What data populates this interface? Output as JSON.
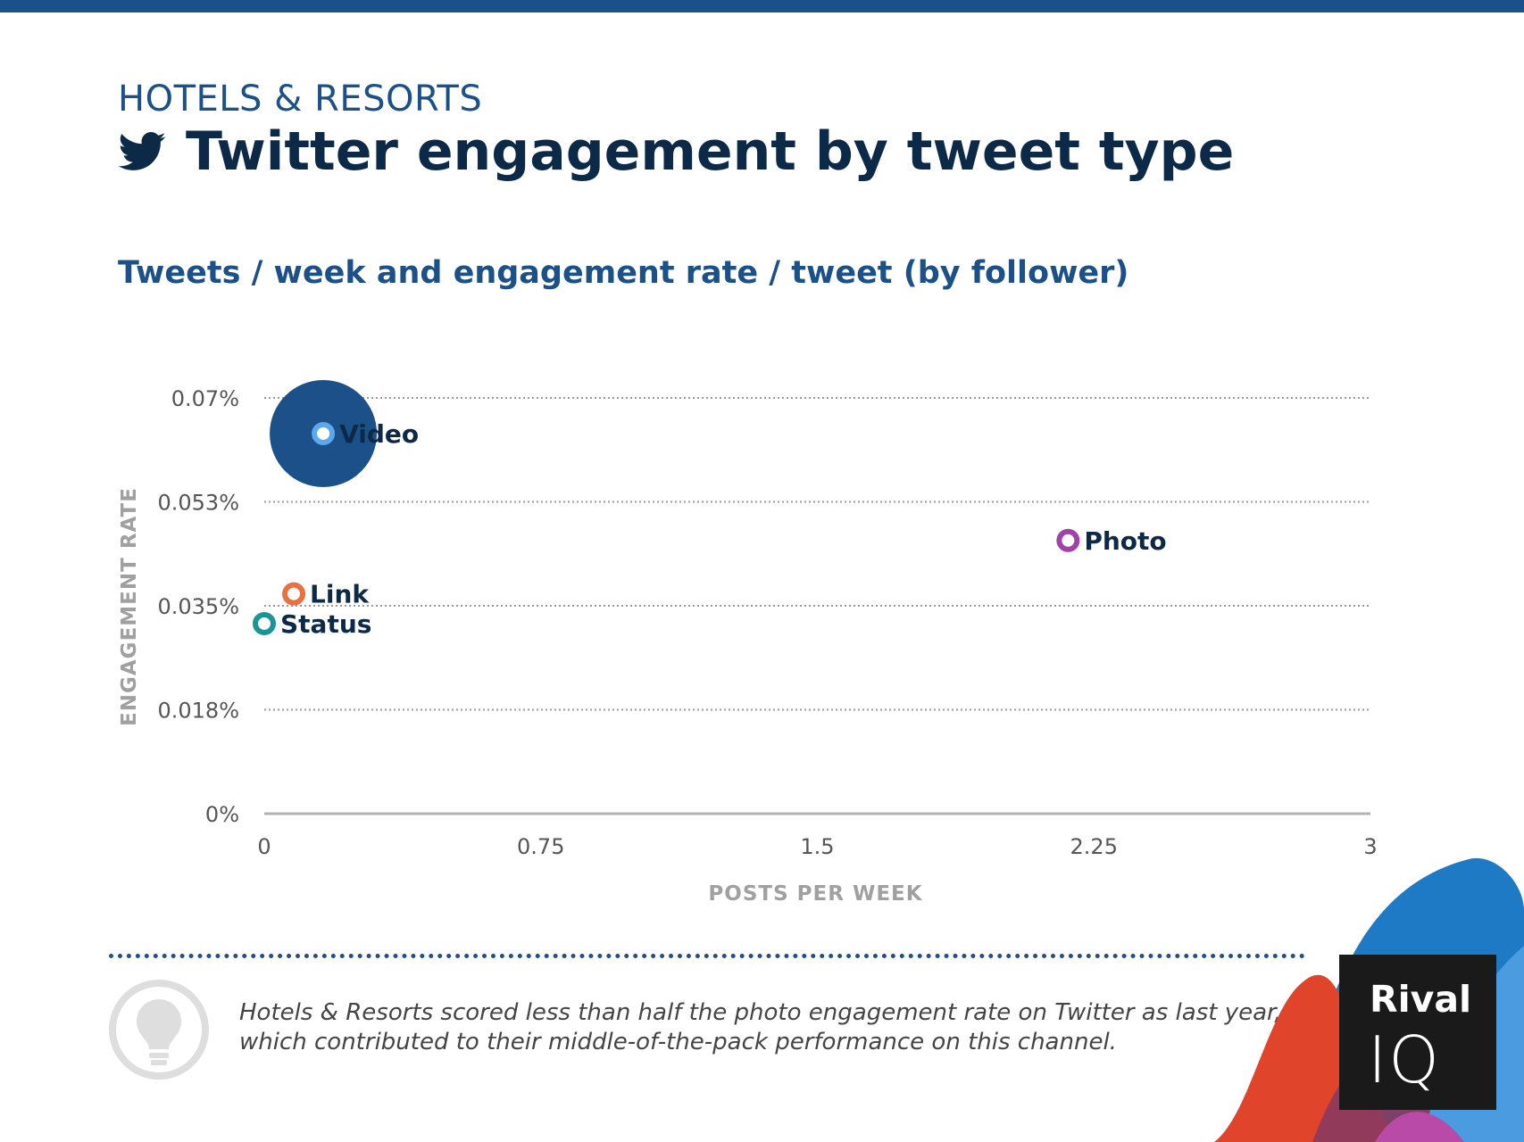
{
  "header": {
    "kicker": "HOTELS & RESORTS",
    "title": "Twitter engagement by tweet type",
    "subtitle": "Tweets / week and engagement rate / tweet (by follower)"
  },
  "chart_data": {
    "type": "scatter",
    "title": "Tweets / week and engagement rate / tweet (by follower)",
    "xlabel": "POSTS PER WEEK",
    "ylabel": "ENGAGEMENT RATE",
    "xlim": [
      0,
      3
    ],
    "ylim": [
      0,
      0.07
    ],
    "x_ticks": [
      {
        "value": 0,
        "label": "0"
      },
      {
        "value": 0.75,
        "label": "0.75"
      },
      {
        "value": 1.5,
        "label": "1.5"
      },
      {
        "value": 2.25,
        "label": "2.25"
      },
      {
        "value": 3,
        "label": "3"
      }
    ],
    "y_ticks": [
      {
        "value": 0,
        "label": "0%"
      },
      {
        "value": 0.0175,
        "label": "0.018%"
      },
      {
        "value": 0.035,
        "label": "0.035%"
      },
      {
        "value": 0.0525,
        "label": "0.053%"
      },
      {
        "value": 0.07,
        "label": "0.07%"
      }
    ],
    "grid": "horizontal dotted",
    "series": [
      {
        "name": "Video",
        "x": 0.16,
        "y": 0.064,
        "color": "#5ba8ef",
        "highlight": true,
        "highlight_color": "#1b5088"
      },
      {
        "name": "Photo",
        "x": 2.18,
        "y": 0.046,
        "color": "#a142a8"
      },
      {
        "name": "Link",
        "x": 0.08,
        "y": 0.037,
        "color": "#ea7040"
      },
      {
        "name": "Status",
        "x": 0.0,
        "y": 0.032,
        "color": "#1a9694"
      }
    ]
  },
  "insight": {
    "line1": "Hotels & Resorts scored less than half the photo engagement rate on Twitter as last year,",
    "line2": "which contributed to their middle-of-the-pack performance on this channel."
  },
  "logo": {
    "line1": "Rival",
    "line2": "IQ"
  },
  "colors": {
    "brand": "#1b5088",
    "title": "#0c2a48",
    "axis_label": "#a0a0a0"
  }
}
